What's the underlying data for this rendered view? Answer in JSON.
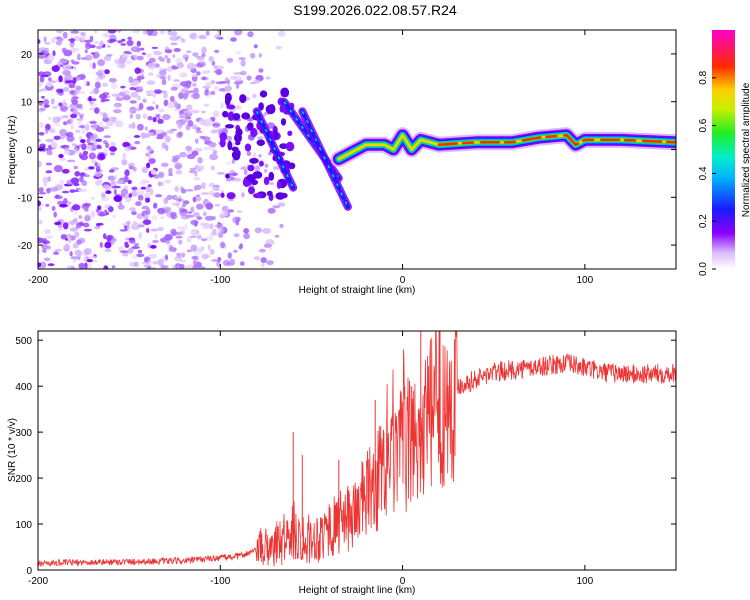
{
  "title": "S199.2026.022.08.57.R24",
  "chart_data": [
    {
      "type": "heatmap",
      "name": "spectrogram",
      "xlabel": "Height of straight line (km)",
      "ylabel": "Frequency (Hz)",
      "xlim": [
        -200,
        150
      ],
      "ylim": [
        -25,
        25
      ],
      "xticks": [
        -200,
        -100,
        0,
        100
      ],
      "yticks": [
        -20,
        -10,
        0,
        10,
        20
      ],
      "colorbar": {
        "label": "Normalized spectral amplitude",
        "range": [
          0,
          1
        ],
        "ticks": [
          0.0,
          0.2,
          0.4,
          0.6,
          0.8
        ]
      },
      "ridge": {
        "x": [
          -35,
          -20,
          -10,
          -5,
          0,
          5,
          10,
          20,
          40,
          60,
          75,
          90,
          95,
          100,
          120,
          150
        ],
        "y": [
          -2,
          1,
          1,
          0,
          3,
          0,
          2,
          1,
          1.5,
          1.5,
          2.5,
          3,
          1,
          2,
          2,
          1.5
        ]
      },
      "streaks": [
        {
          "x": [
            -65,
            -35
          ],
          "y": [
            10,
            -6
          ]
        },
        {
          "x": [
            -55,
            -30
          ],
          "y": [
            8,
            -12
          ]
        },
        {
          "x": [
            -80,
            -60
          ],
          "y": [
            8,
            -8
          ]
        }
      ],
      "noise_region": {
        "x": [
          -200,
          -65
        ],
        "y": [
          -25,
          25
        ]
      }
    },
    {
      "type": "line",
      "name": "snr",
      "xlabel": "Height of straight line (km)",
      "ylabel": "SNR (10 * v/v)",
      "xlim": [
        -200,
        150
      ],
      "ylim": [
        0,
        520
      ],
      "xticks": [
        -200,
        -100,
        0,
        100
      ],
      "yticks": [
        0,
        100,
        200,
        300,
        400,
        500
      ],
      "color": "#ee3333",
      "trend": {
        "x": [
          -200,
          -120,
          -90,
          -70,
          -60,
          -50,
          -40,
          -30,
          -20,
          -10,
          0,
          10,
          20,
          30,
          50,
          70,
          90,
          110,
          130,
          150
        ],
        "y": [
          15,
          20,
          30,
          55,
          80,
          65,
          90,
          110,
          160,
          210,
          260,
          300,
          360,
          400,
          430,
          440,
          450,
          430,
          425,
          430
        ]
      },
      "spikes": [
        {
          "x": -60,
          "y": 300
        },
        {
          "x": -55,
          "y": 250
        },
        {
          "x": -35,
          "y": 240
        },
        {
          "x": -15,
          "y": 370
        },
        {
          "x": 5,
          "y": 400
        },
        {
          "x": 10,
          "y": 520
        }
      ]
    }
  ]
}
